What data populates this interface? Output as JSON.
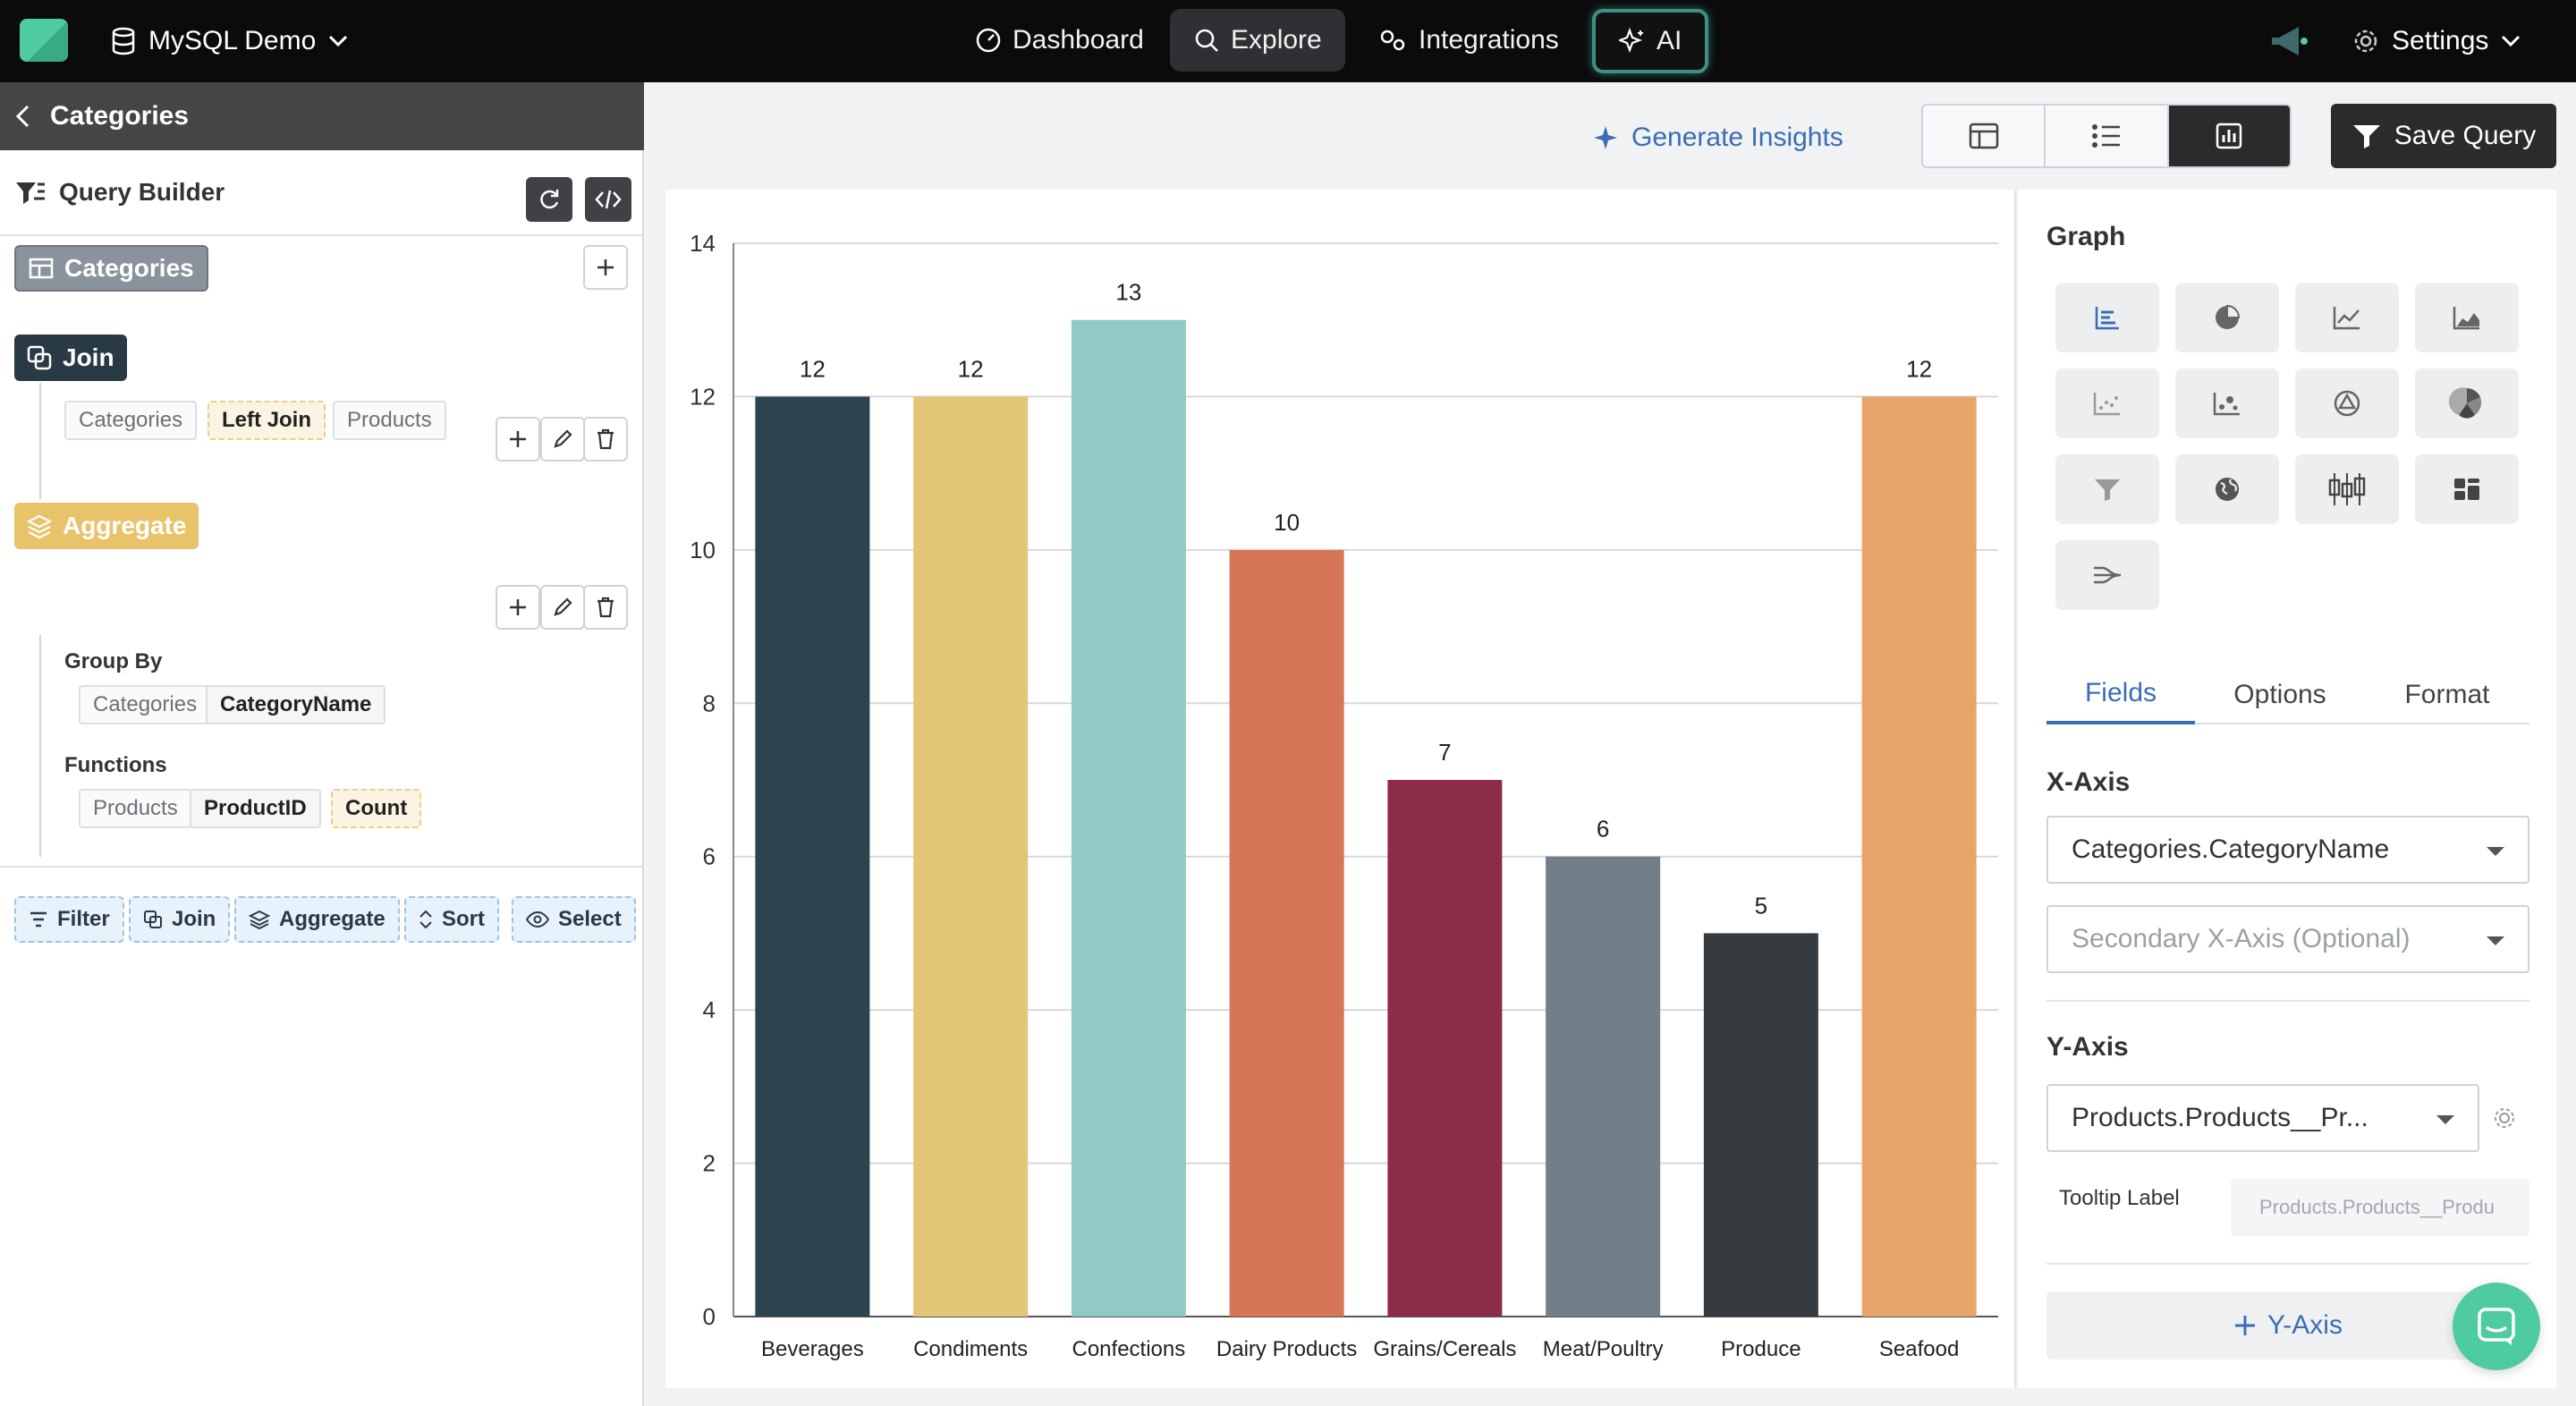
{
  "topbar": {
    "db_name": "MySQL Demo",
    "nav": [
      "Dashboard",
      "Explore",
      "Integrations",
      "AI"
    ],
    "settings_label": "Settings"
  },
  "left": {
    "back_title": "Categories",
    "query_builder": "Query Builder",
    "source_table": "Categories",
    "join": {
      "label": "Join",
      "left": "Categories",
      "type": "Left Join",
      "right": "Products"
    },
    "aggregate": {
      "label": "Aggregate",
      "group_by_label": "Group By",
      "group_by_table": "Categories",
      "group_by_field": "CategoryName",
      "functions_label": "Functions",
      "fn_table": "Products",
      "fn_field": "ProductID",
      "fn_name": "Count"
    },
    "actions": [
      "Filter",
      "Join",
      "Aggregate",
      "Sort",
      "Select"
    ]
  },
  "toolbar": {
    "generate_insights": "Generate Insights",
    "save_query": "Save Query"
  },
  "chart_data": {
    "type": "bar",
    "categories": [
      "Beverages",
      "Condiments",
      "Confections",
      "Dairy Products",
      "Grains/Cereals",
      "Meat/Poultry",
      "Produce",
      "Seafood"
    ],
    "values": [
      12,
      12,
      13,
      10,
      7,
      6,
      5,
      12
    ],
    "colors": [
      "#2d434f",
      "#e2c575",
      "#91c9c4",
      "#d77657",
      "#8d2c48",
      "#727f88",
      "#363b3f",
      "#e8a56a"
    ],
    "ylim": [
      0,
      14
    ],
    "yticks": [
      "0",
      "2",
      "4",
      "6",
      "8",
      "10",
      "12",
      "14"
    ],
    "grid": true,
    "data_labels": true
  },
  "settings": {
    "graph_title": "Graph",
    "tabs": [
      "Fields",
      "Options",
      "Format"
    ],
    "x_axis_label": "X-Axis",
    "x_axis_value": "Categories.CategoryName",
    "x_axis_secondary_placeholder": "Secondary X-Axis (Optional)",
    "y_axis_label": "Y-Axis",
    "y_axis_value": "Products.Products__Pr...",
    "tooltip_label": "Tooltip Label",
    "tooltip_value": "Products.Products__Produ",
    "add_y_axis": "Y-Axis"
  }
}
